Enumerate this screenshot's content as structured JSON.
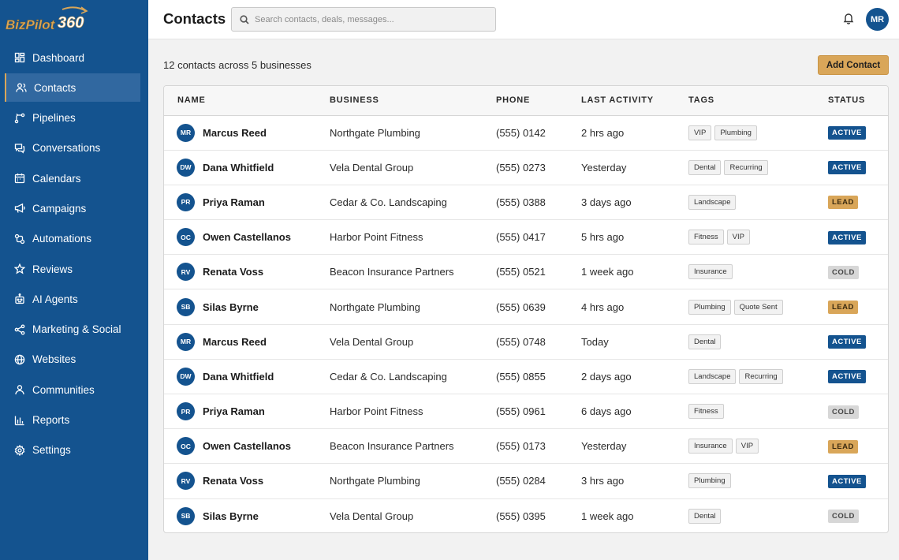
{
  "app": {
    "logo_text": "BizPilot",
    "logo_number": "360"
  },
  "colors": {
    "primary": "#14538f",
    "accent": "#d9a659",
    "cold": "#d7d7d7"
  },
  "sidebar": {
    "items": [
      {
        "label": "Dashboard",
        "icon": "dashboard-icon",
        "active": false
      },
      {
        "label": "Contacts",
        "icon": "contacts-icon",
        "active": true
      },
      {
        "label": "Pipelines",
        "icon": "pipelines-icon",
        "active": false
      },
      {
        "label": "Conversations",
        "icon": "conversations-icon",
        "active": false
      },
      {
        "label": "Calendars",
        "icon": "calendar-icon",
        "active": false
      },
      {
        "label": "Campaigns",
        "icon": "megaphone-icon",
        "active": false
      },
      {
        "label": "Automations",
        "icon": "automations-icon",
        "active": false
      },
      {
        "label": "Reviews",
        "icon": "star-icon",
        "active": false
      },
      {
        "label": "AI Agents",
        "icon": "robot-icon",
        "active": false
      },
      {
        "label": "Marketing & Social",
        "icon": "share-icon",
        "active": false
      },
      {
        "label": "Websites",
        "icon": "globe-icon",
        "active": false
      },
      {
        "label": "Communities",
        "icon": "people-icon",
        "active": false
      },
      {
        "label": "Reports",
        "icon": "bar-chart-icon",
        "active": false
      },
      {
        "label": "Settings",
        "icon": "gear-icon",
        "active": false
      }
    ]
  },
  "header": {
    "title": "Contacts",
    "search_placeholder": "Search contacts, deals, messages...",
    "user_initials": "MR"
  },
  "main": {
    "summary": "12 contacts across 5 businesses",
    "add_button": "Add Contact"
  },
  "table": {
    "columns": [
      "NAME",
      "BUSINESS",
      "PHONE",
      "LAST ACTIVITY",
      "TAGS",
      "STATUS"
    ],
    "rows": [
      {
        "initials": "MR",
        "name": "Marcus Reed",
        "business": "Northgate Plumbing",
        "phone": "(555) 0142",
        "activity": "2 hrs ago",
        "tags": [
          "VIP",
          "Plumbing"
        ],
        "status": "ACTIVE"
      },
      {
        "initials": "DW",
        "name": "Dana Whitfield",
        "business": "Vela Dental Group",
        "phone": "(555) 0273",
        "activity": "Yesterday",
        "tags": [
          "Dental",
          "Recurring"
        ],
        "status": "ACTIVE"
      },
      {
        "initials": "PR",
        "name": "Priya Raman",
        "business": "Cedar & Co. Landscaping",
        "phone": "(555) 0388",
        "activity": "3 days ago",
        "tags": [
          "Landscape"
        ],
        "status": "LEAD"
      },
      {
        "initials": "OC",
        "name": "Owen Castellanos",
        "business": "Harbor Point Fitness",
        "phone": "(555) 0417",
        "activity": "5 hrs ago",
        "tags": [
          "Fitness",
          "VIP"
        ],
        "status": "ACTIVE"
      },
      {
        "initials": "RV",
        "name": "Renata Voss",
        "business": "Beacon Insurance Partners",
        "phone": "(555) 0521",
        "activity": "1 week ago",
        "tags": [
          "Insurance"
        ],
        "status": "COLD"
      },
      {
        "initials": "SB",
        "name": "Silas Byrne",
        "business": "Northgate Plumbing",
        "phone": "(555) 0639",
        "activity": "4 hrs ago",
        "tags": [
          "Plumbing",
          "Quote Sent"
        ],
        "status": "LEAD"
      },
      {
        "initials": "MR",
        "name": "Marcus Reed",
        "business": "Vela Dental Group",
        "phone": "(555) 0748",
        "activity": "Today",
        "tags": [
          "Dental"
        ],
        "status": "ACTIVE"
      },
      {
        "initials": "DW",
        "name": "Dana Whitfield",
        "business": "Cedar & Co. Landscaping",
        "phone": "(555) 0855",
        "activity": "2 days ago",
        "tags": [
          "Landscape",
          "Recurring"
        ],
        "status": "ACTIVE"
      },
      {
        "initials": "PR",
        "name": "Priya Raman",
        "business": "Harbor Point Fitness",
        "phone": "(555) 0961",
        "activity": "6 days ago",
        "tags": [
          "Fitness"
        ],
        "status": "COLD"
      },
      {
        "initials": "OC",
        "name": "Owen Castellanos",
        "business": "Beacon Insurance Partners",
        "phone": "(555) 0173",
        "activity": "Yesterday",
        "tags": [
          "Insurance",
          "VIP"
        ],
        "status": "LEAD"
      },
      {
        "initials": "RV",
        "name": "Renata Voss",
        "business": "Northgate Plumbing",
        "phone": "(555) 0284",
        "activity": "3 hrs ago",
        "tags": [
          "Plumbing"
        ],
        "status": "ACTIVE"
      },
      {
        "initials": "SB",
        "name": "Silas Byrne",
        "business": "Vela Dental Group",
        "phone": "(555) 0395",
        "activity": "1 week ago",
        "tags": [
          "Dental"
        ],
        "status": "COLD"
      }
    ]
  }
}
